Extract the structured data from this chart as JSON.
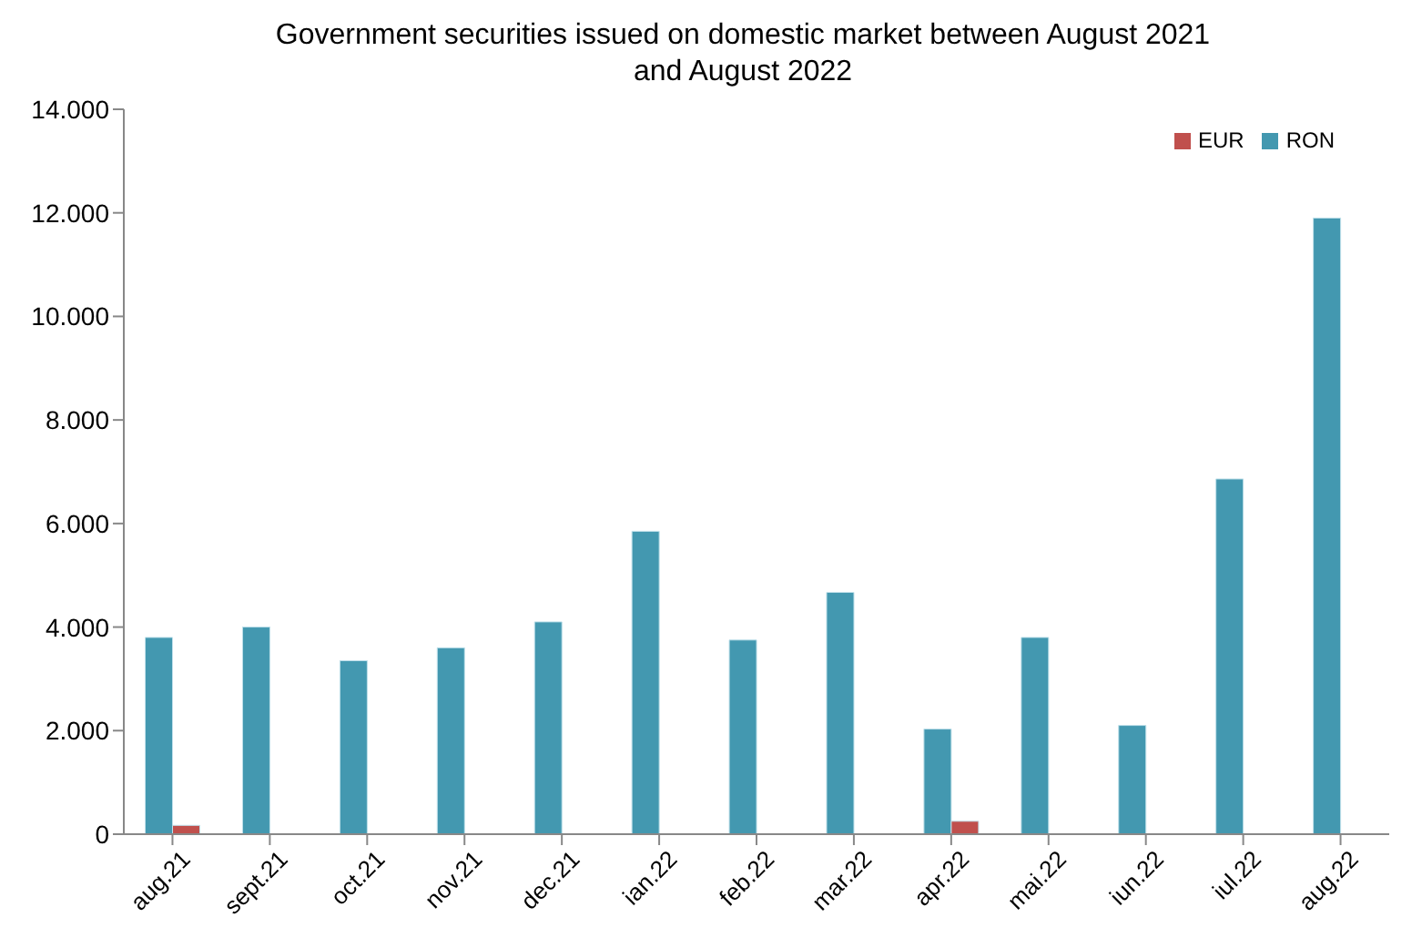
{
  "chart_data": {
    "type": "bar",
    "title": "Government securities issued on domestic market between August 2021 and August 2022",
    "categories": [
      "aug.21",
      "sept.21",
      "oct.21",
      "nov.21",
      "dec.21",
      "ian.22",
      "feb.22",
      "mar.22",
      "apr.22",
      "mai.22",
      "iun.22",
      "iul.22",
      "aug.22"
    ],
    "series": [
      {
        "name": "RON",
        "color": "#4398b0",
        "values": [
          3800,
          4000,
          3350,
          3600,
          4100,
          5850,
          3750,
          4670,
          2030,
          3800,
          2100,
          6860,
          11900
        ]
      },
      {
        "name": "EUR",
        "color": "#c0504d",
        "values": [
          170,
          null,
          null,
          null,
          null,
          null,
          null,
          null,
          250,
          null,
          null,
          null,
          null
        ]
      }
    ],
    "ylim": [
      0,
      14000
    ],
    "yticks": [
      {
        "value": 0,
        "label": "0"
      },
      {
        "value": 2000,
        "label": "2.000"
      },
      {
        "value": 4000,
        "label": "4.000"
      },
      {
        "value": 6000,
        "label": "6.000"
      },
      {
        "value": 8000,
        "label": "8.000"
      },
      {
        "value": 10000,
        "label": "10.000"
      },
      {
        "value": 12000,
        "label": "12.000"
      },
      {
        "value": 14000,
        "label": "14.000"
      }
    ],
    "grid": false,
    "legend": "top right"
  }
}
